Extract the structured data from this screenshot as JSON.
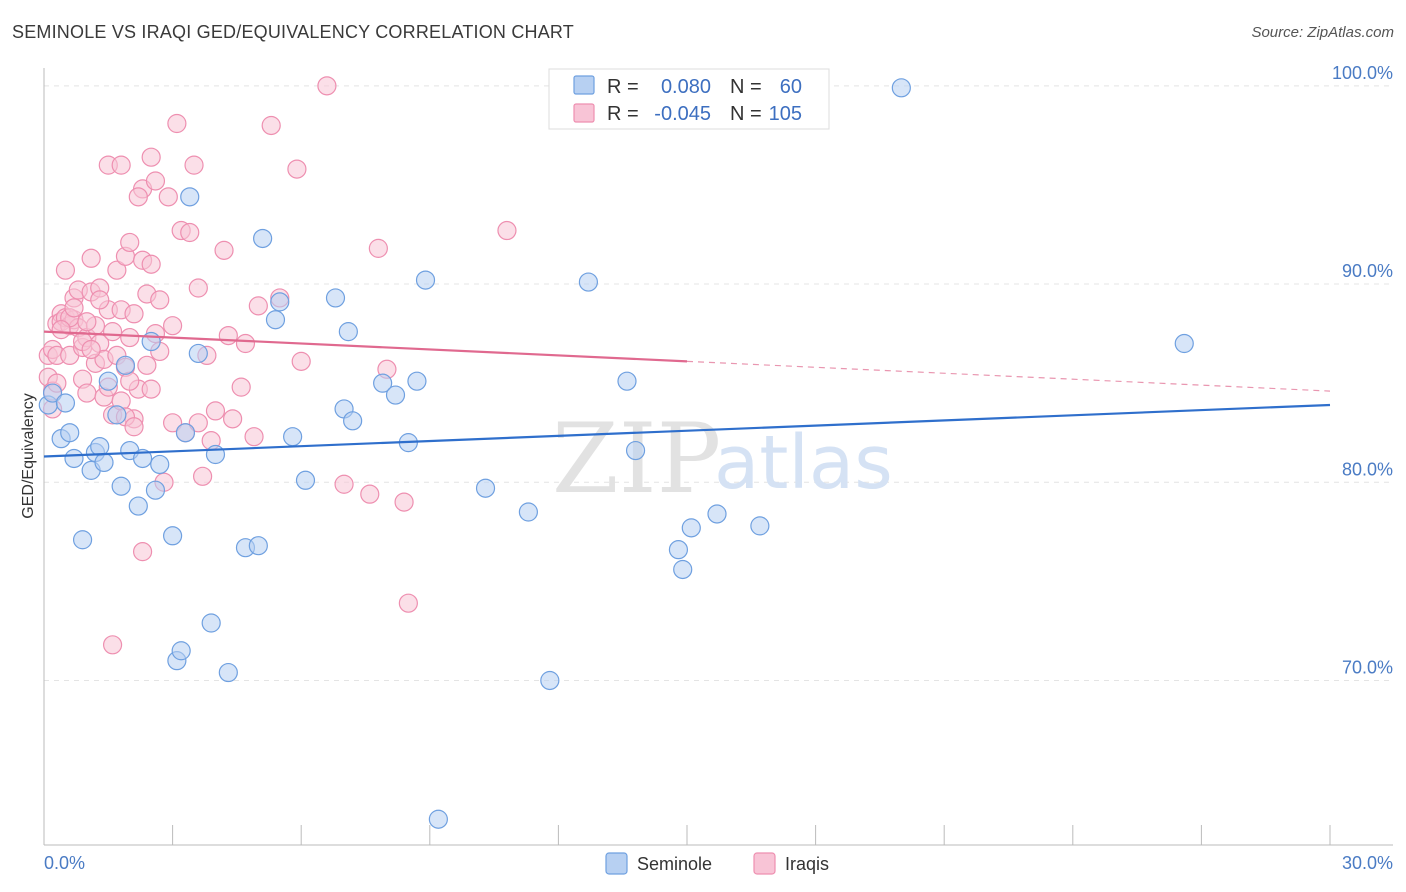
{
  "title": "SEMINOLE VS IRAQI GED/EQUIVALENCY CORRELATION CHART",
  "source": "Source: ZipAtlas.com",
  "watermark": {
    "zip": "ZIP",
    "atlas": "atlas"
  },
  "colors": {
    "seminole": "#6fa0e0",
    "seminole_fill": "#b7d0f2",
    "seminole_line": "#2f6fcc",
    "iraqis": "#ee8fb0",
    "iraqis_fill": "#f8c4d6",
    "iraqis_line": "#e0698f",
    "tick": "#4a7bc4",
    "grid": "#e4e4e4"
  },
  "legend": {
    "rows": [
      {
        "r_label": "R =",
        "r_value": "0.080",
        "n_label": "N =",
        "n_value": "60"
      },
      {
        "r_label": "R =",
        "r_value": "-0.045",
        "n_label": "N =",
        "n_value": "105"
      }
    ]
  },
  "chart_data": {
    "type": "scatter",
    "title": "SEMINOLE VS IRAQI GED/EQUIVALENCY CORRELATION CHART",
    "xlabel": "",
    "ylabel": "GED/Equivalency",
    "xlim": [
      0,
      30
    ],
    "ylim": [
      61.7,
      100.9
    ],
    "x_tick_labels": [
      "0.0%",
      "30.0%"
    ],
    "y_ticks": [
      70,
      80,
      90,
      100
    ],
    "y_tick_labels": [
      "70.0%",
      "80.0%",
      "90.0%",
      "100.0%"
    ],
    "legend_position": "top-center",
    "series": [
      {
        "name": "Seminole",
        "R": 0.08,
        "N": 60,
        "trend": {
          "x": [
            0,
            30
          ],
          "y": [
            81.3,
            83.9
          ],
          "dashed_from_x": null
        },
        "points": [
          [
            0.1,
            83.9
          ],
          [
            0.2,
            84.5
          ],
          [
            0.4,
            82.2
          ],
          [
            0.5,
            84.0
          ],
          [
            0.6,
            82.5
          ],
          [
            0.7,
            81.2
          ],
          [
            0.9,
            77.1
          ],
          [
            1.1,
            80.6
          ],
          [
            1.2,
            81.5
          ],
          [
            1.3,
            81.8
          ],
          [
            1.4,
            81.0
          ],
          [
            1.5,
            85.1
          ],
          [
            1.7,
            83.4
          ],
          [
            1.8,
            79.8
          ],
          [
            1.9,
            85.9
          ],
          [
            2.0,
            81.6
          ],
          [
            2.2,
            78.8
          ],
          [
            2.3,
            81.2
          ],
          [
            2.5,
            87.1
          ],
          [
            2.6,
            79.6
          ],
          [
            2.7,
            80.9
          ],
          [
            3.0,
            77.3
          ],
          [
            3.1,
            71.0
          ],
          [
            3.2,
            71.5
          ],
          [
            3.3,
            82.5
          ],
          [
            3.4,
            94.4
          ],
          [
            3.6,
            86.5
          ],
          [
            3.9,
            72.9
          ],
          [
            4.0,
            81.4
          ],
          [
            4.3,
            70.4
          ],
          [
            4.7,
            76.7
          ],
          [
            5.0,
            76.8
          ],
          [
            5.1,
            92.3
          ],
          [
            5.4,
            88.2
          ],
          [
            5.5,
            89.1
          ],
          [
            5.8,
            82.3
          ],
          [
            6.1,
            80.1
          ],
          [
            6.8,
            89.3
          ],
          [
            7.0,
            83.7
          ],
          [
            7.1,
            87.6
          ],
          [
            7.2,
            83.1
          ],
          [
            7.9,
            85.0
          ],
          [
            8.2,
            84.4
          ],
          [
            8.5,
            82.0
          ],
          [
            8.7,
            85.1
          ],
          [
            8.9,
            90.2
          ],
          [
            10.3,
            79.7
          ],
          [
            11.3,
            78.5
          ],
          [
            11.8,
            70.0
          ],
          [
            12.7,
            90.1
          ],
          [
            13.6,
            85.1
          ],
          [
            13.8,
            81.6
          ],
          [
            14.8,
            76.6
          ],
          [
            14.9,
            75.6
          ],
          [
            15.1,
            77.7
          ],
          [
            15.7,
            78.4
          ],
          [
            16.7,
            77.8
          ],
          [
            20.0,
            99.9
          ],
          [
            26.6,
            87.0
          ],
          [
            9.2,
            63.0
          ]
        ]
      },
      {
        "name": "Iraqis",
        "R": -0.045,
        "N": 105,
        "trend": {
          "x": [
            0,
            30
          ],
          "y": [
            87.6,
            84.6
          ],
          "dashed_from_x": 15.0
        },
        "points": [
          [
            0.1,
            86.4
          ],
          [
            0.1,
            85.3
          ],
          [
            0.2,
            86.7
          ],
          [
            0.2,
            84.6
          ],
          [
            0.3,
            88.0
          ],
          [
            0.3,
            86.4
          ],
          [
            0.3,
            85.0
          ],
          [
            0.4,
            88.5
          ],
          [
            0.4,
            88.1
          ],
          [
            0.5,
            90.7
          ],
          [
            0.5,
            88.3
          ],
          [
            0.6,
            87.9
          ],
          [
            0.6,
            86.4
          ],
          [
            0.7,
            89.3
          ],
          [
            0.7,
            88.2
          ],
          [
            0.8,
            89.7
          ],
          [
            0.8,
            87.8
          ],
          [
            0.9,
            86.8
          ],
          [
            0.9,
            85.2
          ],
          [
            1.0,
            87.3
          ],
          [
            1.0,
            84.5
          ],
          [
            1.1,
            91.3
          ],
          [
            1.1,
            89.6
          ],
          [
            1.2,
            86.0
          ],
          [
            1.2,
            87.9
          ],
          [
            1.3,
            89.8
          ],
          [
            1.3,
            87.0
          ],
          [
            1.4,
            86.2
          ],
          [
            1.4,
            84.3
          ],
          [
            1.5,
            96.0
          ],
          [
            1.5,
            88.7
          ],
          [
            1.6,
            87.6
          ],
          [
            1.6,
            83.4
          ],
          [
            1.7,
            90.7
          ],
          [
            1.7,
            86.4
          ],
          [
            1.8,
            88.7
          ],
          [
            1.8,
            84.1
          ],
          [
            1.9,
            91.4
          ],
          [
            1.9,
            85.8
          ],
          [
            2.0,
            92.1
          ],
          [
            2.0,
            87.3
          ],
          [
            2.1,
            83.2
          ],
          [
            2.1,
            88.5
          ],
          [
            2.2,
            84.7
          ],
          [
            2.3,
            94.8
          ],
          [
            2.3,
            91.2
          ],
          [
            2.4,
            89.5
          ],
          [
            2.4,
            85.9
          ],
          [
            2.5,
            96.4
          ],
          [
            2.5,
            91.0
          ],
          [
            2.6,
            95.2
          ],
          [
            2.6,
            87.5
          ],
          [
            2.7,
            89.2
          ],
          [
            2.8,
            80.0
          ],
          [
            2.9,
            94.4
          ],
          [
            3.0,
            83.0
          ],
          [
            3.1,
            98.1
          ],
          [
            3.2,
            92.7
          ],
          [
            3.3,
            82.5
          ],
          [
            3.4,
            92.6
          ],
          [
            3.5,
            96.0
          ],
          [
            3.6,
            89.8
          ],
          [
            3.6,
            83.0
          ],
          [
            3.7,
            80.3
          ],
          [
            3.8,
            86.4
          ],
          [
            4.0,
            83.6
          ],
          [
            4.2,
            91.7
          ],
          [
            4.3,
            87.4
          ],
          [
            4.4,
            83.2
          ],
          [
            4.6,
            84.8
          ],
          [
            4.7,
            87.0
          ],
          [
            4.9,
            82.3
          ],
          [
            5.0,
            88.9
          ],
          [
            5.3,
            98.0
          ],
          [
            5.5,
            89.3
          ],
          [
            5.9,
            95.8
          ],
          [
            6.0,
            86.1
          ],
          [
            6.6,
            100.0
          ],
          [
            7.0,
            79.9
          ],
          [
            7.6,
            79.4
          ],
          [
            7.8,
            91.8
          ],
          [
            8.0,
            85.7
          ],
          [
            8.4,
            79.0
          ],
          [
            8.5,
            73.9
          ],
          [
            10.8,
            92.7
          ],
          [
            1.6,
            71.8
          ],
          [
            2.3,
            76.5
          ],
          [
            2.2,
            94.4
          ],
          [
            1.3,
            89.2
          ],
          [
            0.6,
            88.3
          ],
          [
            0.9,
            87.1
          ],
          [
            1.1,
            86.7
          ],
          [
            2.0,
            85.1
          ],
          [
            0.4,
            87.7
          ],
          [
            1.8,
            96.0
          ],
          [
            2.5,
            84.7
          ],
          [
            0.7,
            88.8
          ],
          [
            1.0,
            88.1
          ],
          [
            1.5,
            84.8
          ],
          [
            3.0,
            87.9
          ],
          [
            0.2,
            83.7
          ],
          [
            1.9,
            83.3
          ],
          [
            2.7,
            86.6
          ],
          [
            3.9,
            82.1
          ],
          [
            2.1,
            82.8
          ]
        ]
      }
    ]
  }
}
